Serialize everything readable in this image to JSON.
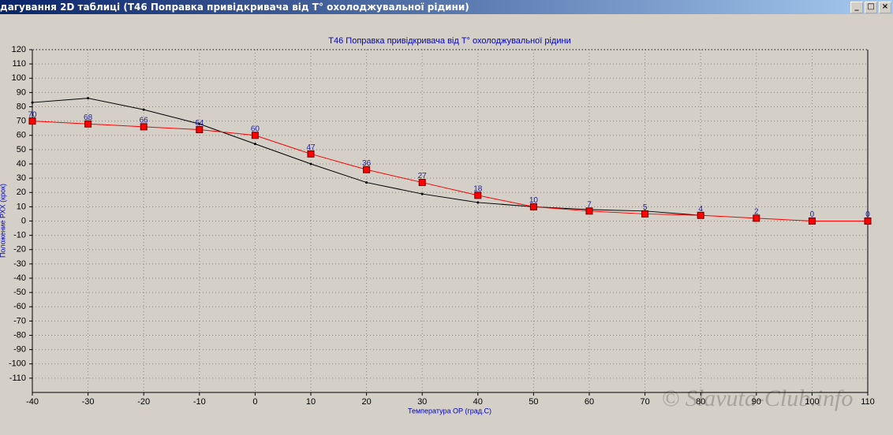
{
  "window": {
    "title": "дагування 2D таблиці (T46 Поправка привідкривача від T° охолоджувальної рідини)"
  },
  "watermark": "© Slavuta-Club.info",
  "chart_data": {
    "type": "line",
    "title": "T46 Поправка привідкривача від T° охолоджувальної рідини",
    "x_label": "Температура ОР (град.С)",
    "y_label": "Положение РХХ (крок)",
    "x": [
      -40,
      -30,
      -20,
      -10,
      0,
      10,
      20,
      30,
      40,
      50,
      60,
      70,
      80,
      90,
      100,
      110
    ],
    "series": [
      {
        "color": "#ff0000",
        "marker": "square",
        "data_labels": true,
        "values": [
          70,
          68,
          66,
          64,
          60,
          47,
          36,
          27,
          18,
          10,
          7,
          5,
          4,
          2,
          0,
          0
        ]
      },
      {
        "color": "#000000",
        "marker": "dot",
        "data_labels": false,
        "values": [
          83,
          86,
          78,
          68,
          54,
          40,
          27,
          19,
          13,
          10,
          8,
          7,
          4,
          null,
          null,
          null
        ]
      }
    ],
    "xlim": [
      -40,
      110
    ],
    "xticks": [
      -40,
      -30,
      -20,
      -10,
      0,
      10,
      20,
      30,
      40,
      50,
      60,
      70,
      80,
      90,
      100,
      110
    ],
    "ylim": [
      -120,
      120
    ],
    "yticks": [
      -110,
      -100,
      -90,
      -80,
      -70,
      -60,
      -50,
      -40,
      -30,
      -20,
      -10,
      0,
      10,
      20,
      30,
      40,
      50,
      60,
      70,
      80,
      90,
      100,
      110,
      120
    ],
    "grid": true
  }
}
